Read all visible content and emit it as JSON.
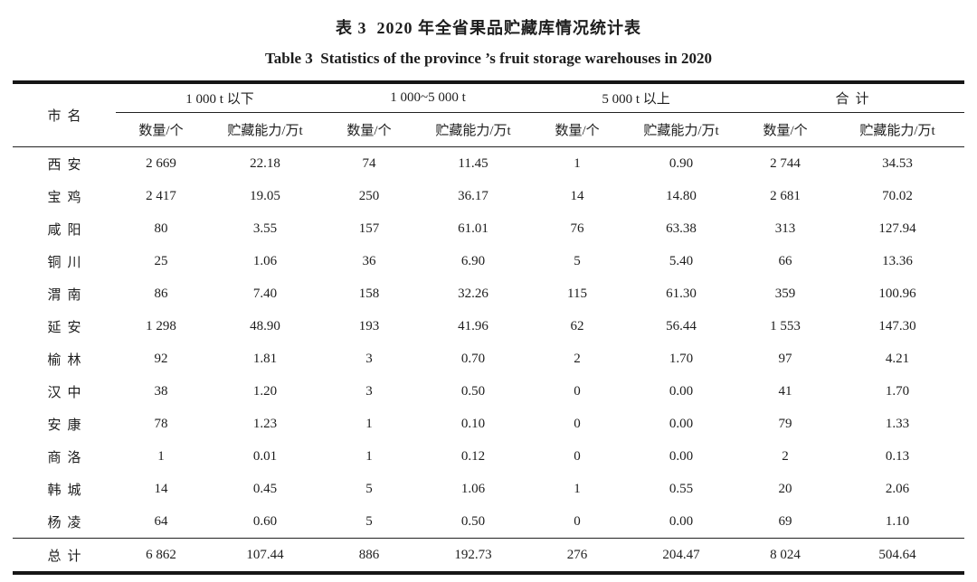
{
  "title": {
    "zh": "表 3  2020 年全省果品贮藏库情况统计表",
    "en": "Table 3  Statistics of the province ’s fruit storage warehouses in 2020"
  },
  "table": {
    "corner_header": "市名",
    "groups": [
      {
        "label": "1 000 t 以下"
      },
      {
        "label": "1 000~5 000 t"
      },
      {
        "label": "5 000 t 以上"
      },
      {
        "label": "合计"
      }
    ],
    "sub_headers": [
      "数量/个",
      "贮藏能力/万t"
    ],
    "rows": [
      {
        "city": "西安",
        "values": [
          "2 669",
          "22.18",
          "74",
          "11.45",
          "1",
          "0.90",
          "2 744",
          "34.53"
        ]
      },
      {
        "city": "宝鸡",
        "values": [
          "2 417",
          "19.05",
          "250",
          "36.17",
          "14",
          "14.80",
          "2 681",
          "70.02"
        ]
      },
      {
        "city": "咸阳",
        "values": [
          "80",
          "3.55",
          "157",
          "61.01",
          "76",
          "63.38",
          "313",
          "127.94"
        ]
      },
      {
        "city": "铜川",
        "values": [
          "25",
          "1.06",
          "36",
          "6.90",
          "5",
          "5.40",
          "66",
          "13.36"
        ]
      },
      {
        "city": "渭南",
        "values": [
          "86",
          "7.40",
          "158",
          "32.26",
          "115",
          "61.30",
          "359",
          "100.96"
        ]
      },
      {
        "city": "延安",
        "values": [
          "1 298",
          "48.90",
          "193",
          "41.96",
          "62",
          "56.44",
          "1 553",
          "147.30"
        ]
      },
      {
        "city": "榆林",
        "values": [
          "92",
          "1.81",
          "3",
          "0.70",
          "2",
          "1.70",
          "97",
          "4.21"
        ]
      },
      {
        "city": "汉中",
        "values": [
          "38",
          "1.20",
          "3",
          "0.50",
          "0",
          "0.00",
          "41",
          "1.70"
        ]
      },
      {
        "city": "安康",
        "values": [
          "78",
          "1.23",
          "1",
          "0.10",
          "0",
          "0.00",
          "79",
          "1.33"
        ]
      },
      {
        "city": "商洛",
        "values": [
          "1",
          "0.01",
          "1",
          "0.12",
          "0",
          "0.00",
          "2",
          "0.13"
        ]
      },
      {
        "city": "韩城",
        "values": [
          "14",
          "0.45",
          "5",
          "1.06",
          "1",
          "0.55",
          "20",
          "2.06"
        ]
      },
      {
        "city": "杨凌",
        "values": [
          "64",
          "0.60",
          "5",
          "0.50",
          "0",
          "0.00",
          "69",
          "1.10"
        ]
      }
    ],
    "total_row": {
      "city": "总计",
      "values": [
        "6 862",
        "107.44",
        "886",
        "192.73",
        "276",
        "204.47",
        "8 024",
        "504.64"
      ]
    }
  }
}
